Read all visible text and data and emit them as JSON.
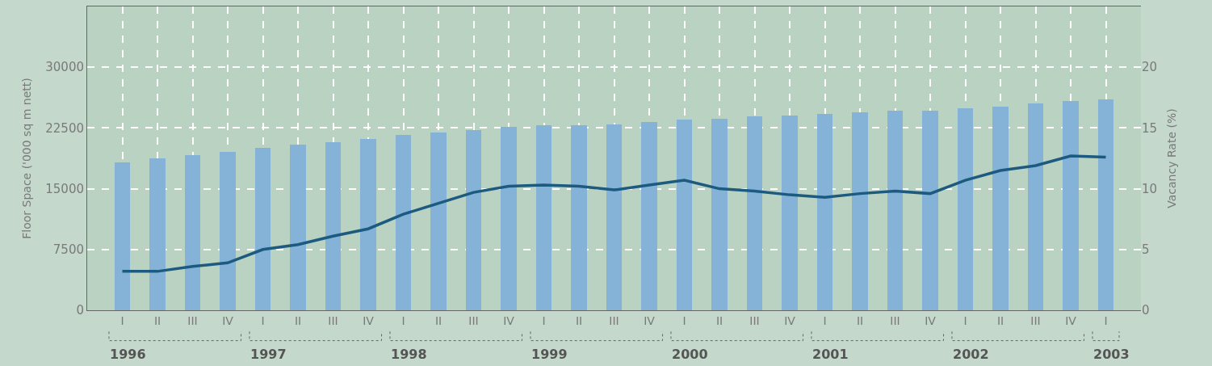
{
  "chart_data": {
    "type": "bar",
    "categories": [
      "I",
      "II",
      "III",
      "IV",
      "I",
      "II",
      "III",
      "IV",
      "I",
      "II",
      "III",
      "IV",
      "I",
      "II",
      "III",
      "IV",
      "I",
      "II",
      "III",
      "IV",
      "I",
      "II",
      "III",
      "IV",
      "I",
      "II",
      "III",
      "IV",
      "I"
    ],
    "series": [
      {
        "color": "#85b3d8",
        "values": [
          18300,
          18800,
          19100,
          19500,
          20000,
          20400,
          20700,
          21100,
          21600,
          21900,
          22200,
          22600,
          22800,
          22800,
          22900,
          23200,
          23500,
          23600,
          23900,
          24000,
          24200,
          24400,
          24600,
          24600,
          24900,
          25100,
          25500,
          25800,
          26000
        ]
      },
      {
        "type": "line",
        "axis": "y2",
        "color": "#1d5a80",
        "marker": "none",
        "line_style": "solid",
        "values": [
          3.2,
          3.2,
          3.6,
          3.9,
          5.0,
          5.4,
          6.1,
          6.7,
          7.9,
          8.8,
          9.7,
          10.2,
          10.3,
          10.2,
          9.9,
          10.3,
          10.7,
          10.0,
          9.8,
          9.5,
          9.3,
          9.6,
          9.8,
          9.6,
          10.7,
          11.5,
          11.9,
          12.7,
          12.6
        ]
      }
    ],
    "ylabel": "Floor Space ('000 sq m nett)",
    "y2label": "Vacancy Rate (%)",
    "ylim": [
      0,
      37500
    ],
    "yticks": [
      0,
      7500,
      15000,
      22500,
      30000
    ],
    "y2lim": [
      0,
      25
    ],
    "y2ticks": [
      0,
      5,
      10,
      15,
      20
    ],
    "annotations": [
      "1996",
      "1997",
      "1998",
      "1999",
      "2000",
      "2001",
      "2002",
      "2003"
    ],
    "grid": true
  }
}
